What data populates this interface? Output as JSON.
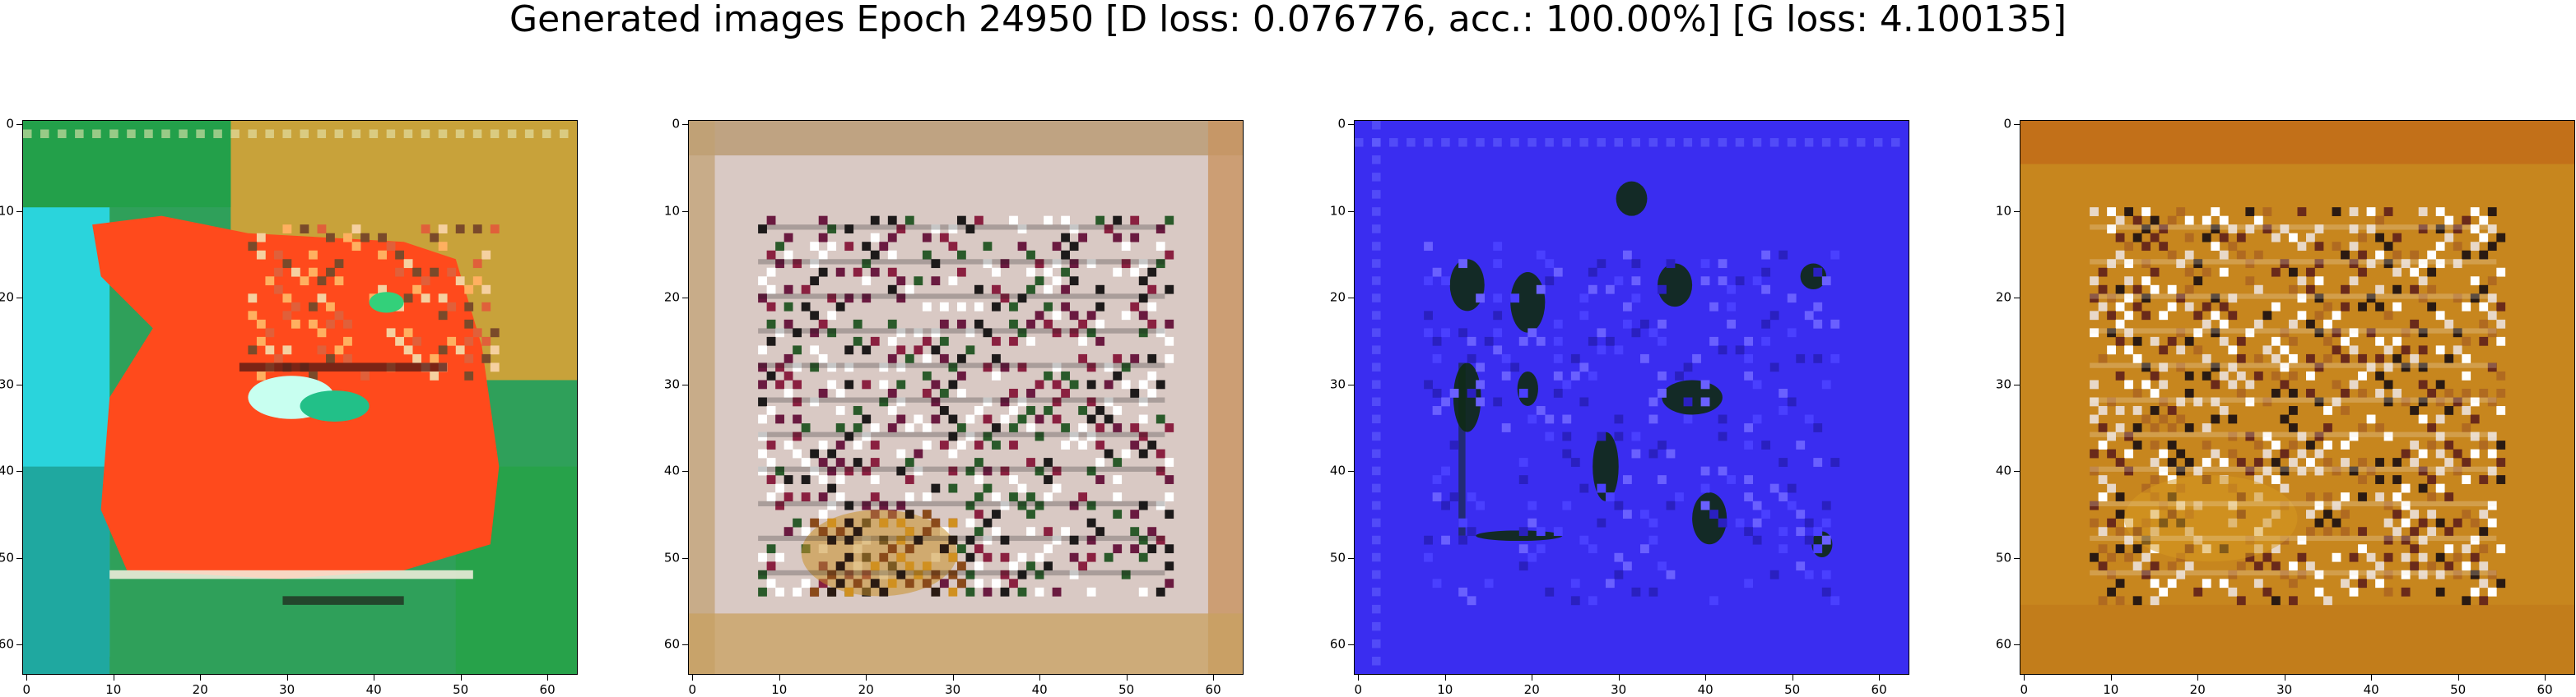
{
  "figure": {
    "title": "Generated images Epoch 24950 [D loss: 0.076776, acc.: 100.00%] [G loss: 4.100135]"
  },
  "chart_data": [
    {
      "type": "heatmap",
      "xlim": [
        0,
        63
      ],
      "ylim": [
        63,
        0
      ],
      "x_ticks": [
        "0",
        "10",
        "20",
        "30",
        "40",
        "50",
        "60"
      ],
      "y_ticks": [
        "0",
        "10",
        "20",
        "30",
        "40",
        "50",
        "60"
      ],
      "grid": false,
      "colors": {
        "background": "#2fa05a",
        "primary": "#ff4a1c",
        "accent": "#2ad4dc"
      }
    },
    {
      "type": "heatmap",
      "xlim": [
        0,
        63
      ],
      "ylim": [
        63,
        0
      ],
      "x_ticks": [
        "0",
        "10",
        "20",
        "30",
        "40",
        "50",
        "60"
      ],
      "y_ticks": [
        "0",
        "10",
        "20",
        "30",
        "40",
        "50",
        "60"
      ],
      "grid": false,
      "colors": {
        "background": "#d9c9c4",
        "primary": "#1d1a1a",
        "accent": "#c8902a"
      }
    },
    {
      "type": "heatmap",
      "xlim": [
        0,
        63
      ],
      "ylim": [
        63,
        0
      ],
      "x_ticks": [
        "0",
        "10",
        "20",
        "30",
        "40",
        "50",
        "60"
      ],
      "y_ticks": [
        "0",
        "10",
        "20",
        "30",
        "40",
        "50",
        "60"
      ],
      "grid": false,
      "colors": {
        "background": "#3a2df0",
        "primary": "#0f2a10",
        "accent": "#5050ff"
      }
    },
    {
      "type": "heatmap",
      "xlim": [
        0,
        63
      ],
      "ylim": [
        63,
        0
      ],
      "x_ticks": [
        "0",
        "10",
        "20",
        "30",
        "40",
        "50",
        "60"
      ],
      "y_ticks": [
        "0",
        "10",
        "20",
        "30",
        "40",
        "50",
        "60"
      ],
      "grid": false,
      "colors": {
        "background": "#c7861e",
        "primary": "#e8d8c8",
        "accent": "#2a1a12"
      }
    }
  ]
}
